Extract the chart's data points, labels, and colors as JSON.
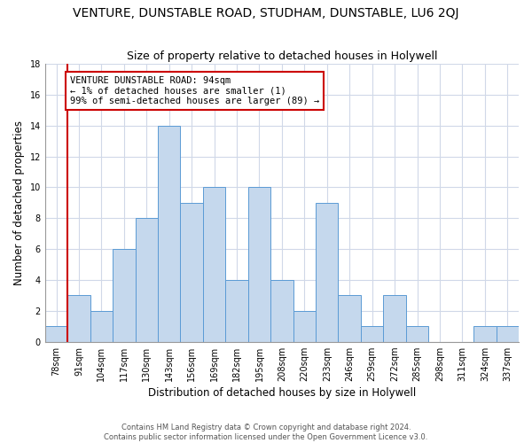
{
  "title": "VENTURE, DUNSTABLE ROAD, STUDHAM, DUNSTABLE, LU6 2QJ",
  "subtitle": "Size of property relative to detached houses in Holywell",
  "xlabel": "Distribution of detached houses by size in Holywell",
  "ylabel": "Number of detached properties",
  "categories": [
    "78sqm",
    "91sqm",
    "104sqm",
    "117sqm",
    "130sqm",
    "143sqm",
    "156sqm",
    "169sqm",
    "182sqm",
    "195sqm",
    "208sqm",
    "220sqm",
    "233sqm",
    "246sqm",
    "259sqm",
    "272sqm",
    "285sqm",
    "298sqm",
    "311sqm",
    "324sqm",
    "337sqm"
  ],
  "values": [
    1,
    3,
    2,
    6,
    8,
    14,
    9,
    10,
    4,
    10,
    4,
    2,
    9,
    3,
    1,
    3,
    1,
    0,
    0,
    1,
    1
  ],
  "bar_color": "#c5d8ed",
  "bar_edge_color": "#5b9bd5",
  "vline_color": "#cc0000",
  "annotation_text": "VENTURE DUNSTABLE ROAD: 94sqm\n← 1% of detached houses are smaller (1)\n99% of semi-detached houses are larger (89) →",
  "annotation_box_color": "#ffffff",
  "annotation_box_edge_color": "#cc0000",
  "ylim": [
    0,
    18
  ],
  "yticks": [
    0,
    2,
    4,
    6,
    8,
    10,
    12,
    14,
    16,
    18
  ],
  "footer_text": "Contains HM Land Registry data © Crown copyright and database right 2024.\nContains public sector information licensed under the Open Government Licence v3.0.",
  "background_color": "#ffffff",
  "grid_color": "#d0d8e8",
  "title_fontsize": 10,
  "subtitle_fontsize": 9,
  "axis_label_fontsize": 8.5,
  "tick_fontsize": 7,
  "footer_fontsize": 6,
  "annot_fontsize": 7.5
}
